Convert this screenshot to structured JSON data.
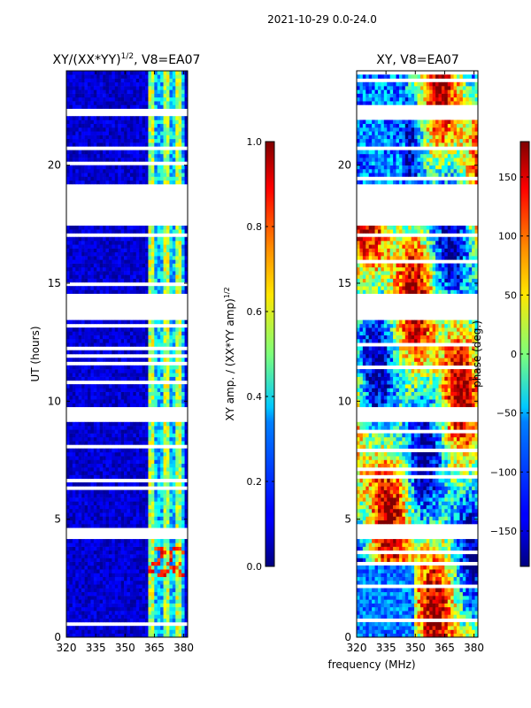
{
  "figure": {
    "suptitle": "2021-10-29 0.0-24.0",
    "xlabel": "frequency (MHz)",
    "ylabel": "UT (hours)"
  },
  "chart_data": [
    {
      "type": "heatmap",
      "title_main": "XY/(XX*YY)",
      "title_sup": "1/2",
      "title_rest": ", V8=EA07",
      "x_ticks": [
        "320",
        "335",
        "350",
        "365",
        "380"
      ],
      "x_tick_values": [
        320,
        335,
        350,
        365,
        380
      ],
      "xlim": [
        320,
        382
      ],
      "y_ticks": [
        "0",
        "5",
        "10",
        "15",
        "20"
      ],
      "y_tick_values": [
        0,
        5,
        10,
        15,
        20
      ],
      "ylim": [
        0,
        24
      ],
      "colormap": "jet",
      "colorbar": {
        "label_main": "XY amp. / (XX*YY amp)",
        "label_sup": "1/2",
        "ticks": [
          "0.0",
          "0.2",
          "0.4",
          "0.6",
          "0.8",
          "1.0"
        ],
        "tick_values": [
          0.0,
          0.2,
          0.4,
          0.6,
          0.8,
          1.0
        ],
        "range": [
          0,
          1
        ]
      },
      "gaps_ut": [
        [
          4.2,
          4.7
        ],
        [
          9.1,
          9.8
        ],
        [
          13.4,
          14.6
        ],
        [
          17.5,
          19.2
        ],
        [
          22.1,
          22.4
        ]
      ],
      "bright_band_mhz": [
        362,
        380
      ]
    },
    {
      "type": "heatmap",
      "title_main": "XY, V8=EA07",
      "x_ticks": [
        "320",
        "335",
        "350",
        "365",
        "380"
      ],
      "x_tick_values": [
        320,
        335,
        350,
        365,
        380
      ],
      "xlim": [
        320,
        382
      ],
      "y_ticks": [
        "0",
        "5",
        "10",
        "15",
        "20"
      ],
      "y_tick_values": [
        0,
        5,
        10,
        15,
        20
      ],
      "ylim": [
        0,
        24
      ],
      "colormap": "jet",
      "colorbar": {
        "label": "phase (deg.)",
        "ticks": [
          "−150",
          "−100",
          "−50",
          "0",
          "50",
          "100",
          "150"
        ],
        "tick_values": [
          -150,
          -100,
          -50,
          0,
          50,
          100,
          150
        ],
        "range": [
          -180,
          180
        ]
      },
      "gaps_ut": [
        [
          4.2,
          4.7
        ],
        [
          9.1,
          9.8
        ],
        [
          13.4,
          14.6
        ],
        [
          17.5,
          19.2
        ],
        [
          22.1,
          22.4
        ]
      ]
    }
  ]
}
